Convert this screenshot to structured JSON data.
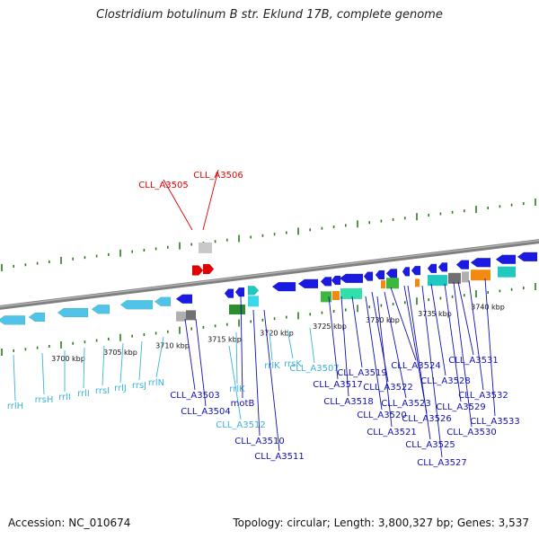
{
  "title": "Clostridium botulinum B str. Eklund 17B, complete genome",
  "footer": {
    "accession": "Accession: NC_010674",
    "summary": "Topology: circular; Length: 3,800,327 bp; Genes: 3,537"
  },
  "colors": {
    "backbone": "#888888",
    "ticks": "#2d7a1f",
    "rna_gene": "#4fc3e8",
    "rna_label": "#3ab3d6",
    "cds_blue": "#1a1ae0",
    "cds_label": "#1010b0",
    "highlight": "#e00000",
    "orange": "#f08a10",
    "green": "#3cb83c",
    "teal": "#20c8c0",
    "grey": "#909090"
  },
  "ruler": {
    "labels": [
      "3700 kbp",
      "3705 kbp",
      "3710 kbp",
      "3715 kbp",
      "3720 kbp",
      "3725 kbp",
      "3730 kbp",
      "3735 kbp",
      "3740 kbp"
    ]
  },
  "gene_labels": {
    "highlighted": [
      "CLL_A3505",
      "CLL_A3506"
    ],
    "rna": [
      "rrlH",
      "rrsH",
      "rrlI",
      "rrlI",
      "rrsI",
      "rrlJ",
      "rrsJ",
      "rrlN",
      "rrlK",
      "rrlK",
      "rrsK",
      "CLL_A3507",
      "CLL_A3512"
    ],
    "cds": [
      "CLL_A3503",
      "CLL_A3504",
      "motB",
      "CLL_A3510",
      "CLL_A3511",
      "CLL_A3517",
      "CLL_A3518",
      "CLL_A3519",
      "CLL_A3520",
      "CLL_A3521",
      "CLL_A3522",
      "CLL_A3523",
      "CLL_A3524",
      "CLL_A3525",
      "CLL_A3526",
      "CLL_A3527",
      "CLL_A3528",
      "CLL_A3529",
      "CLL_A3530",
      "CLL_A3531",
      "CLL_A3532",
      "CLL_A3533"
    ]
  }
}
